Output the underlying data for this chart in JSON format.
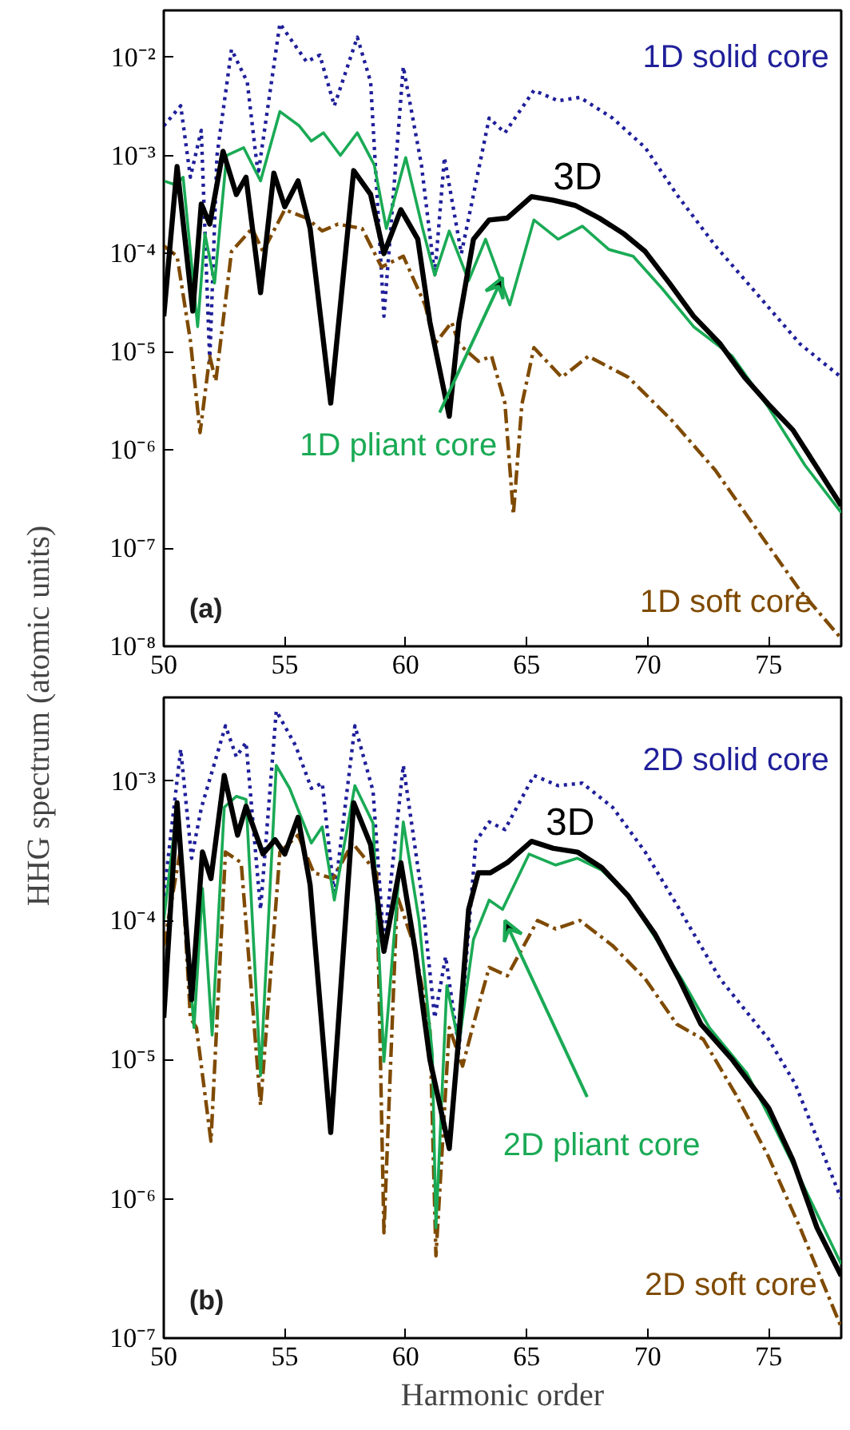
{
  "chart_data": [
    {
      "type": "line",
      "ylabel": "HHG spectrum (atomic units)",
      "annotations": [
        "(a)"
      ],
      "log": true,
      "xlim": [
        50,
        78
      ],
      "xticks": [
        50,
        55,
        60,
        65,
        70,
        75
      ],
      "ylim": [
        1e-08,
        0.03
      ],
      "yticks": [
        {
          "value": 1e-08,
          "label": "10⁻⁸"
        },
        {
          "value": 1e-07,
          "label": "10⁻⁷"
        },
        {
          "value": 1e-06,
          "label": "10⁻⁶"
        },
        {
          "value": 1e-05,
          "label": "10⁻⁵"
        },
        {
          "value": 0.0001,
          "label": "10⁻⁴"
        },
        {
          "value": 0.001,
          "label": "10⁻³"
        },
        {
          "value": 0.01,
          "label": "10⁻²"
        }
      ],
      "series": [
        {
          "name": "1D solid core",
          "color": "#1f1f9a",
          "line_style": "dotted",
          "x": [
            50,
            50.7,
            51.1,
            51.55,
            51.9,
            52.2,
            52.8,
            53.45,
            53.9,
            54.8,
            55.9,
            56.45,
            57.05,
            58.0,
            58.55,
            59.1,
            59.9,
            60.65,
            61.2,
            61.6,
            62.3,
            63.45,
            64.1,
            65.3,
            66.3,
            67.2,
            68.55,
            69.9,
            71.2,
            72.8,
            74.55,
            76.3,
            78
          ],
          "values": [
            0.002,
            0.0032,
            0.0006,
            0.0018,
            8e-06,
            0.001,
            0.012,
            0.0056,
            0.00064,
            0.022,
            0.009,
            0.0105,
            0.0032,
            0.016,
            0.0056,
            2.3e-05,
            0.008,
            0.0008,
            6e-05,
            0.00095,
            0.0001,
            0.0024,
            0.0017,
            0.0046,
            0.0036,
            0.0039,
            0.0024,
            0.0012,
            0.0004,
            0.00012,
            3.8e-05,
            1.2e-05,
            5.5e-06
          ]
        },
        {
          "name": "1D pliant core",
          "color": "#1aaa55",
          "line_style": "solid",
          "x": [
            50,
            50.5,
            50.8,
            51.4,
            51.7,
            52.1,
            52.6,
            53.3,
            54.0,
            54.8,
            55.6,
            56.1,
            56.6,
            57.3,
            58.0,
            58.7,
            59.2,
            60.0,
            60.7,
            61.2,
            61.8,
            62.6,
            63.3,
            64.3,
            65.3,
            66.3,
            67.3,
            68.4,
            69.4,
            70.6,
            71.9,
            73.5,
            75,
            76.5,
            78
          ],
          "values": [
            0.00055,
            0.0005,
            0.0006,
            1.8e-05,
            0.00016,
            5e-05,
            0.001,
            0.0012,
            0.00055,
            0.0028,
            0.002,
            0.0014,
            0.0017,
            0.001,
            0.0017,
            0.0008,
            0.00018,
            0.00095,
            0.00018,
            6e-05,
            0.00017,
            5.3e-05,
            0.00014,
            3e-05,
            0.00022,
            0.00014,
            0.00019,
            0.00011,
            9.4e-05,
            4.4e-05,
            1.8e-05,
            9e-06,
            2.7e-06,
            7e-07,
            2.3e-07
          ]
        },
        {
          "name": "3D",
          "color": "#000000",
          "line_style": "solid",
          "x": [
            50,
            50.55,
            51.2,
            51.55,
            51.9,
            52.45,
            53.0,
            53.4,
            54.0,
            54.55,
            55.0,
            55.55,
            56.05,
            56.9,
            57.85,
            58.55,
            59.1,
            59.8,
            60.5,
            61.0,
            61.8,
            62.2,
            62.8,
            63.45,
            64.2,
            65.2,
            66.1,
            67.0,
            68.0,
            69.0,
            69.9,
            70.9,
            71.9,
            73.0,
            74,
            75,
            76,
            77,
            78
          ],
          "values": [
            2.3e-05,
            0.00077,
            2.6e-05,
            0.00032,
            0.0002,
            0.0011,
            0.0004,
            0.0006,
            4e-05,
            0.00066,
            0.0003,
            0.00055,
            0.00018,
            3e-06,
            0.0007,
            0.0004,
            0.0001,
            0.00028,
            0.00014,
            2e-05,
            2.2e-06,
            2e-05,
            0.00014,
            0.00022,
            0.00023,
            0.00038,
            0.00035,
            0.00031,
            0.00023,
            0.00016,
            0.000105,
            5e-05,
            2.3e-05,
            1.2e-05,
            5.5e-06,
            2.9e-06,
            1.6e-06,
            6.6e-07,
            2.7e-07
          ]
        },
        {
          "name": "1D soft core",
          "color": "#7f4a00",
          "line_style": "dashdot",
          "x": [
            50,
            50.55,
            51.1,
            51.5,
            51.9,
            52.15,
            52.8,
            53.65,
            54.1,
            55.0,
            55.9,
            56.55,
            57.2,
            58.2,
            59.0,
            59.9,
            60.8,
            61.2,
            61.9,
            62.2,
            63.0,
            63.55,
            64.1,
            64.45,
            64.8,
            65.3,
            66.45,
            67.55,
            69.2,
            71.0,
            72.8,
            74.55,
            76.3,
            78
          ],
          "values": [
            0.00012,
            9.4e-05,
            1.3e-05,
            1.5e-06,
            9e-06,
            5e-06,
            0.000105,
            0.00018,
            0.000105,
            0.00028,
            0.00023,
            0.00017,
            0.0002,
            0.00018,
            7.3e-05,
            9.4e-05,
            3e-05,
            1.2e-05,
            2e-05,
            1.2e-05,
            8e-06,
            9e-06,
            3e-06,
            2.2e-07,
            2.9e-06,
            1.1e-05,
            5.5e-06,
            9e-06,
            5.5e-06,
            2e-06,
            6.2e-07,
            1.5e-07,
            3.7e-08,
            1.2e-08
          ]
        }
      ]
    },
    {
      "type": "line",
      "xlabel": "Harmonic order",
      "annotations": [
        "(b)"
      ],
      "log": true,
      "xlim": [
        50,
        78
      ],
      "xticks": [
        50,
        55,
        60,
        65,
        70,
        75
      ],
      "ylim": [
        1e-07,
        0.004
      ],
      "yticks": [
        {
          "value": 1e-07,
          "label": "10⁻⁷"
        },
        {
          "value": 1e-06,
          "label": "10⁻⁶"
        },
        {
          "value": 1e-05,
          "label": "10⁻⁵"
        },
        {
          "value": 0.0001,
          "label": "10⁻⁴"
        },
        {
          "value": 0.001,
          "label": "10⁻³"
        }
      ],
      "series": [
        {
          "name": "2D solid core",
          "color": "#1f1f9a",
          "line_style": "dotted",
          "x": [
            50,
            50.7,
            51.15,
            51.55,
            52.55,
            53.0,
            53.4,
            54.0,
            54.65,
            55.45,
            56.1,
            56.55,
            57.05,
            57.9,
            58.65,
            59.1,
            59.9,
            60.65,
            61.2,
            61.65,
            62.2,
            62.9,
            63.45,
            64.1,
            65.3,
            66.3,
            67.3,
            68.55,
            69.9,
            71.2,
            73.0,
            75.0,
            76.1,
            78
          ],
          "values": [
            0.00015,
            0.0017,
            0.00028,
            0.00064,
            0.0025,
            0.0015,
            0.0019,
            0.00012,
            0.0032,
            0.0018,
            0.00089,
            0.00097,
            0.00015,
            0.0025,
            0.00085,
            6.6e-05,
            0.0013,
            0.00016,
            2e-05,
            5.5e-05,
            1.2e-05,
            0.00037,
            0.00051,
            0.00045,
            0.0011,
            0.00093,
            0.00097,
            0.00065,
            0.00031,
            0.00013,
            3.8e-05,
            1.4e-05,
            6.7e-06,
            1e-06
          ]
        },
        {
          "name": "2D pliant core",
          "color": "#1aaa55",
          "line_style": "solid",
          "x": [
            50,
            50.55,
            51.25,
            51.6,
            52.0,
            52.5,
            53.0,
            53.4,
            54.0,
            54.65,
            55.2,
            56.1,
            56.55,
            57.05,
            57.9,
            58.65,
            59.1,
            59.9,
            60.55,
            61.1,
            61.25,
            61.7,
            62.2,
            62.8,
            63.45,
            64.0,
            65.1,
            66.2,
            67.1,
            68.1,
            69.2,
            70.3,
            71.4,
            72.55,
            74.1,
            75.2,
            76.3,
            78
          ],
          "values": [
            0.0001,
            0.00065,
            1.7e-05,
            0.00017,
            1.5e-05,
            0.00065,
            0.00078,
            0.00074,
            7.7e-06,
            0.0013,
            0.00089,
            0.00036,
            0.00047,
            0.00014,
            0.00093,
            0.0005,
            9.7e-06,
            0.00051,
            0.0001,
            1.1e-05,
            6.2e-07,
            3.4e-05,
            1.3e-05,
            7.3e-05,
            0.00014,
            0.00012,
            0.0003,
            0.00025,
            0.00028,
            0.00023,
            0.00015,
            7.6e-05,
            3.8e-05,
            1.7e-05,
            8e-06,
            3.4e-06,
            1.4e-06,
            3.4e-07
          ]
        },
        {
          "name": "3D",
          "color": "#000000",
          "line_style": "solid",
          "x": [
            50,
            50.55,
            51.15,
            51.6,
            51.95,
            52.5,
            53.05,
            53.4,
            54.1,
            54.6,
            55.0,
            55.55,
            56.05,
            56.9,
            57.85,
            58.55,
            59.1,
            59.8,
            60.4,
            61.0,
            61.8,
            62.2,
            62.6,
            63.0,
            63.5,
            64.2,
            65.2,
            66.1,
            67.1,
            68.1,
            69.2,
            70.3,
            71.3,
            72.2,
            73.5,
            75,
            76,
            77,
            78
          ],
          "values": [
            2e-05,
            0.0007,
            2.7e-05,
            0.00031,
            0.0002,
            0.0011,
            0.00041,
            0.00066,
            0.0003,
            0.00038,
            0.0003,
            0.00055,
            0.00018,
            3e-06,
            0.0007,
            0.00035,
            6e-05,
            0.00026,
            6e-05,
            1e-05,
            2.3e-06,
            1.5e-05,
            0.00012,
            0.00022,
            0.00022,
            0.00026,
            0.00037,
            0.00033,
            0.00031,
            0.00024,
            0.00015,
            8e-05,
            3.8e-05,
            1.8e-05,
            1e-05,
            4.5e-06,
            1.9e-06,
            6.2e-07,
            2.8e-07
          ]
        },
        {
          "name": "2D soft core",
          "color": "#7f4a00",
          "line_style": "dashdot",
          "x": [
            50,
            50.7,
            51.1,
            51.35,
            51.95,
            52.55,
            53.2,
            54.0,
            54.8,
            55.55,
            56.2,
            57.0,
            57.8,
            58.8,
            59.1,
            59.65,
            60.35,
            61.0,
            61.25,
            61.8,
            62.35,
            62.8,
            63.45,
            64.2,
            65.45,
            66.2,
            67.2,
            68.55,
            69.9,
            71.2,
            72.3,
            73.65,
            75,
            76.3,
            78
          ],
          "values": [
            6.6e-05,
            0.00033,
            2e-05,
            1.7e-05,
            2.6e-06,
            0.00031,
            0.00026,
            4.7e-06,
            0.00031,
            0.00041,
            0.00022,
            0.0002,
            0.00036,
            0.00022,
            5.7e-07,
            0.00015,
            6.6e-05,
            1.7e-05,
            3.9e-07,
            1.7e-05,
            9e-06,
            1.8e-05,
            4.6e-05,
            4e-05,
            0.0001,
            8.7e-05,
            0.0001,
            6.6e-05,
            3.8e-05,
            1.8e-05,
            1.4e-05,
            5.6e-06,
            2e-06,
            6.2e-07,
            1.2e-07
          ]
        }
      ]
    }
  ]
}
